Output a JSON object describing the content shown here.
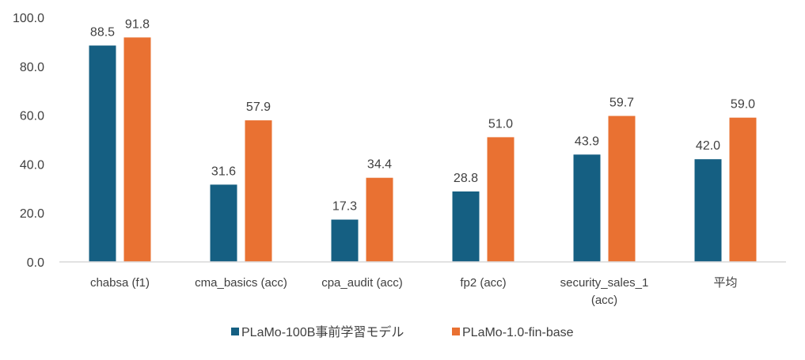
{
  "chart_data": {
    "type": "bar",
    "title": "",
    "xlabel": "",
    "ylabel": "",
    "ylim": [
      0,
      100
    ],
    "yticks": [
      "0.0",
      "20.0",
      "40.0",
      "60.0",
      "80.0",
      "100.0"
    ],
    "grid": false,
    "legend_position": "bottom",
    "categories": [
      "chabsa (f1)",
      "cma_basics (acc)",
      "cpa_audit (acc)",
      "fp2 (acc)",
      "security_sales_1 (acc)",
      "平均"
    ],
    "series": [
      {
        "name": "PLaMo-100B事前学習モデル",
        "color": "#155F82",
        "values": [
          88.5,
          31.6,
          17.3,
          28.8,
          43.9,
          42.0
        ]
      },
      {
        "name": "PLaMo-1.0-fin-base",
        "color": "#E97132",
        "values": [
          91.8,
          57.9,
          34.4,
          51.0,
          59.7,
          59.0
        ]
      }
    ]
  }
}
